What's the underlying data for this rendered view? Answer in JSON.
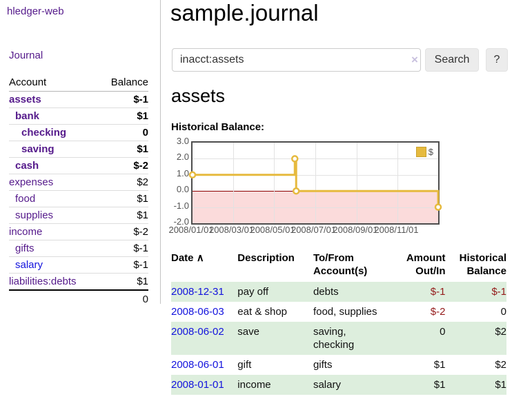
{
  "app": {
    "brand": "hledger-web",
    "nav": {
      "journal": "Journal"
    }
  },
  "sidebar": {
    "table_headers": {
      "account": "Account",
      "balance": "Balance"
    },
    "accounts": [
      {
        "name": "assets",
        "indent": 1,
        "balance": "$-1",
        "bold": true,
        "negative": "strong"
      },
      {
        "name": "bank",
        "indent": 2,
        "balance": "$1",
        "bold": true,
        "negative": "none"
      },
      {
        "name": "checking",
        "indent": 3,
        "balance": "0",
        "bold": true,
        "negative": "none"
      },
      {
        "name": "saving",
        "indent": 3,
        "balance": "$1",
        "bold": true,
        "negative": "none"
      },
      {
        "name": "cash",
        "indent": 2,
        "balance": "$-2",
        "bold": true,
        "negative": "strong"
      },
      {
        "name": "expenses",
        "indent": 1,
        "balance": "$2",
        "bold": false,
        "negative": "none"
      },
      {
        "name": "food",
        "indent": 2,
        "balance": "$1",
        "bold": false,
        "negative": "none"
      },
      {
        "name": "supplies",
        "indent": 2,
        "balance": "$1",
        "bold": false,
        "negative": "none"
      },
      {
        "name": "income",
        "indent": 1,
        "balance": "$-2",
        "bold": false,
        "negative": "soft"
      },
      {
        "name": "gifts",
        "indent": 2,
        "balance": "$-1",
        "bold": false,
        "negative": "soft"
      },
      {
        "name": "salary",
        "indent": 2,
        "balance": "$-1",
        "bold": false,
        "negative": "soft",
        "unvisited": true
      },
      {
        "name": "liabilities:debts",
        "indent": 1,
        "balance": "$1",
        "bold": false,
        "negative": "none"
      }
    ],
    "total": "0"
  },
  "header": {
    "title": "sample.journal"
  },
  "search": {
    "value": "inacct:assets",
    "clear_icon": "×",
    "button_label": "Search",
    "help_label": "?"
  },
  "account_view": {
    "heading": "assets",
    "chart_title": "Historical Balance:"
  },
  "chart_data": {
    "type": "line",
    "step": true,
    "title": "Historical Balance",
    "legend_label": "$",
    "legend_position": "top-right",
    "series_color": "#e6ba3e",
    "x_domain": [
      "2008-01-01",
      "2008-12-31"
    ],
    "x_ticks": [
      "2008/01/01",
      "2008/03/01",
      "2008/05/01",
      "2008/07/01",
      "2008/09/01",
      "2008/11/01"
    ],
    "y_ticks": [
      "3.0",
      "2.0",
      "1.0",
      "0.0",
      "-1.0",
      "-2.0"
    ],
    "ylim": [
      -2,
      3
    ],
    "grid": true,
    "points": [
      {
        "date": "2008-01-01",
        "value": 1
      },
      {
        "date": "2008-06-01",
        "value": 2
      },
      {
        "date": "2008-06-03",
        "value": 0
      },
      {
        "date": "2008-12-31",
        "value": -1
      }
    ],
    "negative_region_color": "#fbdbdb",
    "zero_line_color": "#8b0000"
  },
  "transactions": {
    "headers": {
      "date": "Date",
      "sort_indicator": "∧",
      "description": "Description",
      "accounts": "To/From Account(s)",
      "amount": "Amount Out/In",
      "balance": "Historical Balance"
    },
    "rows": [
      {
        "date": "2008-12-31",
        "description": "pay off",
        "accounts": "debts",
        "amount": "$-1",
        "balance": "$-1"
      },
      {
        "date": "2008-06-03",
        "description": "eat & shop",
        "accounts": "food, supplies",
        "amount": "$-2",
        "balance": "0"
      },
      {
        "date": "2008-06-02",
        "description": "save",
        "accounts": "saving, checking",
        "amount": "0",
        "balance": "$2"
      },
      {
        "date": "2008-06-01",
        "description": "gift",
        "accounts": "gifts",
        "amount": "$1",
        "balance": "$2"
      },
      {
        "date": "2008-01-01",
        "description": "income",
        "accounts": "salary",
        "amount": "$1",
        "balance": "$1"
      }
    ]
  }
}
